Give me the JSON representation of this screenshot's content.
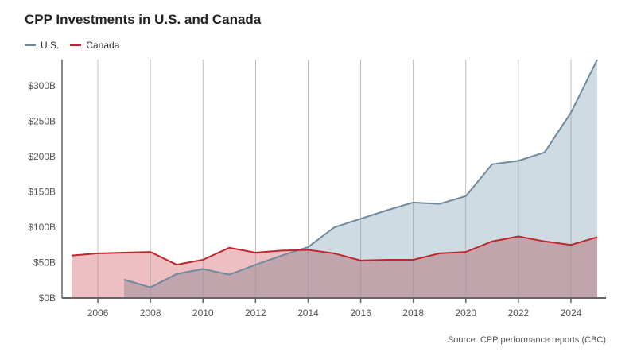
{
  "chart_data": {
    "type": "area",
    "title": "CPP Investments in U.S. and Canada",
    "source": "Source: CPP performance reports (CBC)",
    "xlabel": "",
    "ylabel": "",
    "xlim": [
      2005,
      2025
    ],
    "ylim": [
      0,
      340
    ],
    "x_ticks": [
      2006,
      2008,
      2010,
      2012,
      2014,
      2016,
      2018,
      2020,
      2022,
      2024
    ],
    "y_ticks": [
      {
        "value": 0,
        "label": "$0B"
      },
      {
        "value": 50,
        "label": "$50B"
      },
      {
        "value": 100,
        "label": "$100B"
      },
      {
        "value": 150,
        "label": "$150B"
      },
      {
        "value": 200,
        "label": "$200B"
      },
      {
        "value": 250,
        "label": "$250B"
      },
      {
        "value": 300,
        "label": "$300B"
      }
    ],
    "grid": "vertical",
    "legend_position": "top-left",
    "series": [
      {
        "name": "U.S.",
        "color": "#6f8a9c",
        "fill": "#cfdbe2",
        "x": [
          2007,
          2008,
          2009,
          2010,
          2011,
          2012,
          2013,
          2014,
          2015,
          2016,
          2017,
          2018,
          2019,
          2020,
          2021,
          2022,
          2023,
          2024,
          2025
        ],
        "values": [
          26,
          15,
          34,
          41,
          33,
          47,
          60,
          72,
          100,
          112,
          124,
          135,
          133,
          144,
          189,
          194,
          206,
          262,
          337
        ]
      },
      {
        "name": "Canada",
        "color": "#c0272d",
        "fill": "#e8a9ad",
        "x": [
          2005,
          2006,
          2007,
          2008,
          2009,
          2010,
          2011,
          2012,
          2013,
          2014,
          2015,
          2016,
          2017,
          2018,
          2019,
          2020,
          2021,
          2022,
          2023,
          2024,
          2025
        ],
        "values": [
          60,
          63,
          64,
          65,
          47,
          54,
          71,
          64,
          67,
          68,
          63,
          53,
          54,
          54,
          63,
          65,
          80,
          87,
          80,
          75,
          86
        ]
      }
    ]
  }
}
